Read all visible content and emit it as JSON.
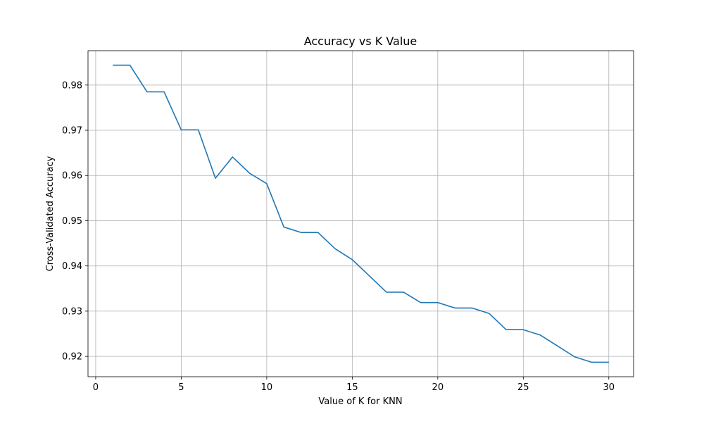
{
  "chart_data": {
    "type": "line",
    "title": "Accuracy vs K Value",
    "xlabel": "Value of K for KNN",
    "ylabel": "Cross-Validated Accuracy",
    "xlim": [
      -0.45,
      31.45
    ],
    "ylim": [
      0.9155,
      0.9876
    ],
    "xticks": [
      0,
      5,
      10,
      15,
      20,
      25,
      30
    ],
    "yticks": [
      0.92,
      0.93,
      0.94,
      0.95,
      0.96,
      0.97,
      0.98
    ],
    "xtick_labels": [
      "0",
      "5",
      "10",
      "15",
      "20",
      "25",
      "30"
    ],
    "ytick_labels": [
      "0.92",
      "0.93",
      "0.94",
      "0.95",
      "0.96",
      "0.97",
      "0.98"
    ],
    "grid": true,
    "series": [
      {
        "color": "#1f77b4",
        "x": [
          1,
          2,
          3,
          4,
          5,
          6,
          7,
          8,
          9,
          10,
          11,
          12,
          13,
          14,
          15,
          16,
          17,
          18,
          19,
          20,
          21,
          22,
          23,
          24,
          25,
          26,
          27,
          28,
          29,
          30
        ],
        "y": [
          0.9844,
          0.9844,
          0.9785,
          0.9785,
          0.9701,
          0.9701,
          0.9594,
          0.9641,
          0.9605,
          0.9582,
          0.9486,
          0.9474,
          0.9474,
          0.9438,
          0.9414,
          0.9378,
          0.9342,
          0.9342,
          0.9319,
          0.9319,
          0.9307,
          0.9307,
          0.9295,
          0.9259,
          0.9259,
          0.9247,
          0.9223,
          0.9199,
          0.9187,
          0.9187
        ]
      }
    ]
  }
}
